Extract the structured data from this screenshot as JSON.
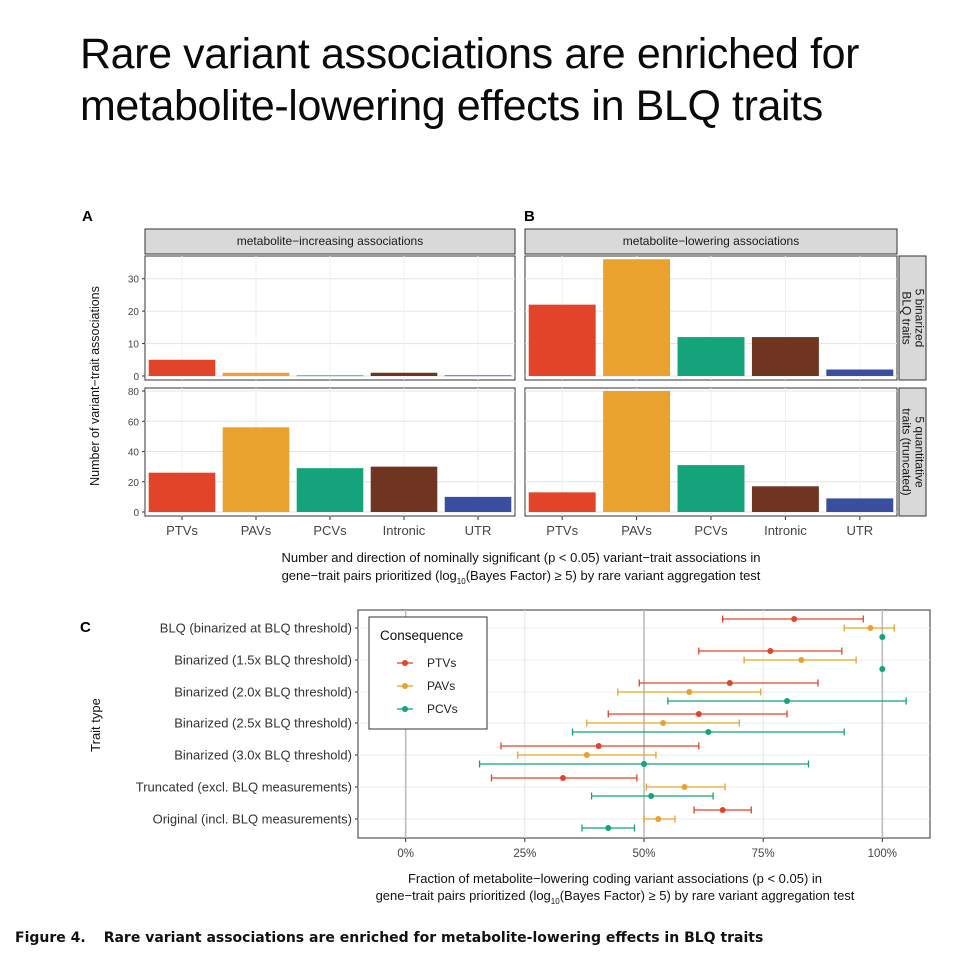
{
  "title": "Rare variant associations are enriched for metabolite-lowering effects in BLQ traits",
  "caption": {
    "label": "Figure 4.",
    "text": "Rare variant associations are enriched for metabolite-lowering effects in BLQ traits"
  },
  "colors": {
    "PTVs": "#e2442a",
    "PAVs": "#e9a22e",
    "PCVs": "#14a37a",
    "Intronic": "#6f3520",
    "UTR": "#3a4ea0"
  },
  "chart_data": [
    {
      "type": "bar",
      "panel_labels": [
        "A",
        "B"
      ],
      "facet_columns": [
        "metabolite−increasing associations",
        "metabolite−lowering associations"
      ],
      "facet_rows": [
        {
          "line1": "5 binarized",
          "line2": "BLQ traits",
          "ylim": [
            0,
            37
          ],
          "yticks": [
            0,
            10,
            20,
            30
          ]
        },
        {
          "line1": "5 quantitative",
          "line2": "traits (truncated)",
          "ylim": [
            0,
            82
          ],
          "yticks": [
            0,
            20,
            40,
            60,
            80
          ]
        }
      ],
      "categories": [
        "PTVs",
        "PAVs",
        "PCVs",
        "Intronic",
        "UTR"
      ],
      "ylabel": "Number of variant−trait associations",
      "xlabel_line1": "Number and direction of nominally significant (p < 0.05) variant−trait associations in",
      "xlabel_line2_pre": "gene−trait pairs prioritized (log",
      "xlabel_line2_sub": "10",
      "xlabel_line2_post": "(Bayes Factor) ≥ 5) by rare variant aggregation test",
      "values": [
        [
          [
            5,
            1,
            0.2,
            1,
            0.2
          ],
          [
            22,
            36,
            12,
            12,
            2
          ]
        ],
        [
          [
            26,
            56,
            29,
            30,
            10
          ],
          [
            13,
            80,
            31,
            17,
            9
          ]
        ]
      ]
    },
    {
      "type": "scatter",
      "panel_label": "C",
      "ylabel": "Trait type",
      "xlabel_line1": "Fraction of metabolite−lowering coding variant associations (p < 0.05) in",
      "xlabel_line2_pre": "gene−trait pairs prioritized (log",
      "xlabel_line2_sub": "10",
      "xlabel_line2_post": "(Bayes Factor) ≥ 5) by rare variant aggregation test",
      "xlim": [
        -0.1,
        1.1
      ],
      "xticks": [
        0,
        0.25,
        0.5,
        0.75,
        1.0
      ],
      "xtick_labels": [
        "0%",
        "25%",
        "50%",
        "75%",
        "100%"
      ],
      "legend": {
        "title": "Consequence",
        "position": "top-left"
      },
      "categories": [
        "BLQ (binarized at BLQ threshold)",
        "Binarized (1.5x BLQ threshold)",
        "Binarized (2.0x BLQ threshold)",
        "Binarized (2.5x BLQ threshold)",
        "Binarized (3.0x BLQ threshold)",
        "Truncated (excl. BLQ measurements)",
        "Original (incl. BLQ measurements)"
      ],
      "series": [
        {
          "name": "PTVs",
          "values": [
            0.815,
            0.765,
            0.68,
            0.615,
            0.405,
            0.33,
            0.665
          ],
          "lower": [
            0.665,
            0.615,
            0.49,
            0.425,
            0.2,
            0.18,
            0.605
          ],
          "upper": [
            0.96,
            0.915,
            0.865,
            0.8,
            0.615,
            0.485,
            0.725
          ]
        },
        {
          "name": "PAVs",
          "values": [
            0.975,
            0.83,
            0.595,
            0.54,
            0.38,
            0.585,
            0.53
          ],
          "lower": [
            0.92,
            0.71,
            0.445,
            0.38,
            0.235,
            0.505,
            0.5
          ],
          "upper": [
            1.025,
            0.945,
            0.745,
            0.7,
            0.525,
            0.67,
            0.565
          ]
        },
        {
          "name": "PCVs",
          "values": [
            1.0,
            1.0,
            0.8,
            0.635,
            0.5,
            0.515,
            0.425
          ],
          "lower": [
            1.0,
            1.0,
            0.55,
            0.35,
            0.155,
            0.39,
            0.37
          ],
          "upper": [
            1.0,
            1.0,
            1.05,
            0.92,
            0.845,
            0.645,
            0.48
          ]
        }
      ]
    }
  ]
}
